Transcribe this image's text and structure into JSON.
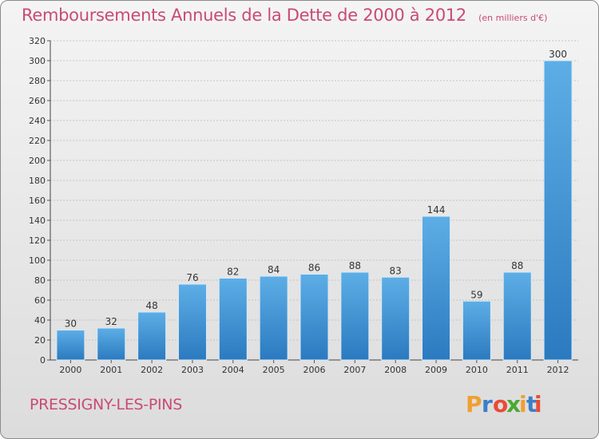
{
  "title": "Remboursements Annuels de la Dette de 2000 à 2012",
  "subtitle": "(en milliers d'€)",
  "commune": "PRESSIGNY-LES-PINS",
  "brand": "Proxiti",
  "colors": {
    "bar_top": "#5daee6",
    "bar_bottom": "#2b7ac0",
    "title": "#c84a78",
    "logo_letters": [
      "#f0a030",
      "#3b7fc8",
      "#e94b35",
      "#4aa832",
      "#f0a030",
      "#3b7fc8",
      "#e94b35"
    ]
  },
  "chart_data": {
    "type": "bar",
    "categories": [
      "2000",
      "2001",
      "2002",
      "2003",
      "2004",
      "2005",
      "2006",
      "2007",
      "2008",
      "2009",
      "2010",
      "2011",
      "2012"
    ],
    "values": [
      30,
      32,
      48,
      76,
      82,
      84,
      86,
      88,
      83,
      144,
      59,
      88,
      300
    ],
    "ylim": [
      0,
      320
    ],
    "yticks": [
      0,
      20,
      40,
      60,
      80,
      100,
      120,
      140,
      160,
      180,
      200,
      220,
      240,
      260,
      280,
      300,
      320
    ],
    "grid": true
  }
}
